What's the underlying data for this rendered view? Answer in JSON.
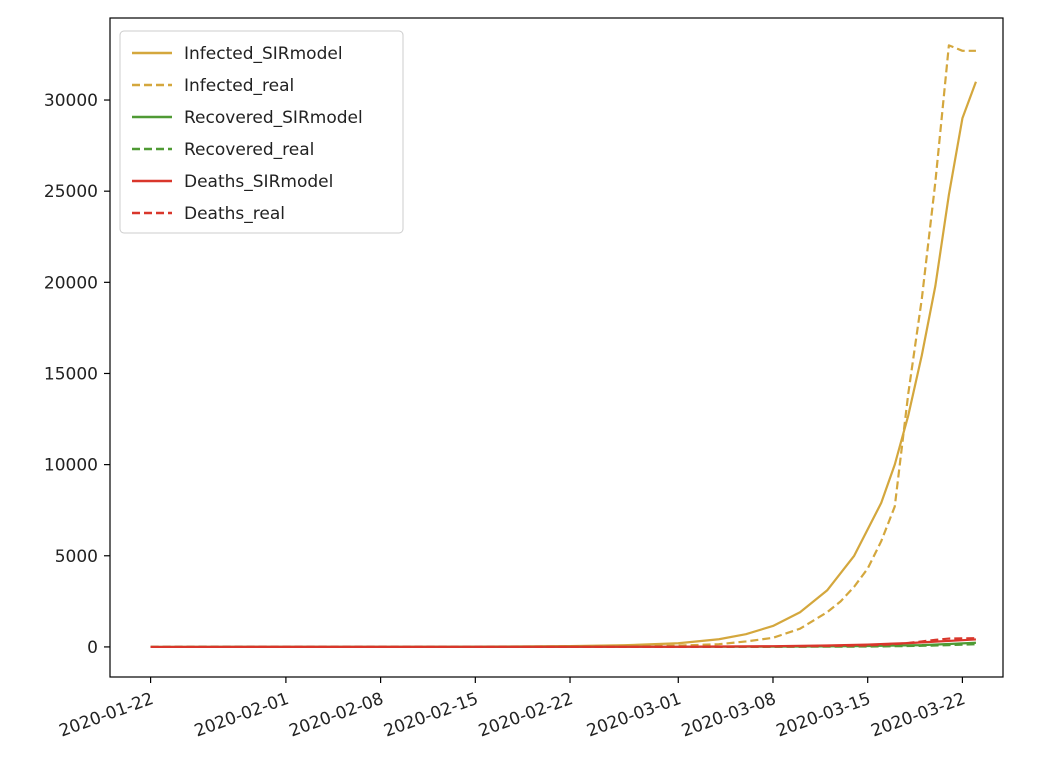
{
  "chart_data": {
    "type": "line",
    "title": "",
    "xlabel": "",
    "ylabel": "",
    "x_start": "2020-01-22",
    "x_end": "2020-03-23",
    "xlim": [
      "2020-01-19",
      "2020-03-25"
    ],
    "ylim": [
      -1650,
      34500
    ],
    "xticks": [
      "2020-01-22",
      "2020-02-01",
      "2020-02-08",
      "2020-02-15",
      "2020-02-22",
      "2020-03-01",
      "2020-03-08",
      "2020-03-15",
      "2020-03-22"
    ],
    "yticks": [
      0,
      5000,
      10000,
      15000,
      20000,
      25000,
      30000
    ],
    "grid": false,
    "legend": "top-left",
    "series": [
      {
        "name": "Infected_SIRmodel",
        "color": "#d4a73d",
        "dash": "solid",
        "points": [
          [
            "2020-01-22",
            0
          ],
          [
            "2020-02-01",
            2
          ],
          [
            "2020-02-08",
            6
          ],
          [
            "2020-02-15",
            15
          ],
          [
            "2020-02-22",
            45
          ],
          [
            "2020-02-26",
            90
          ],
          [
            "2020-03-01",
            200
          ],
          [
            "2020-03-04",
            420
          ],
          [
            "2020-03-06",
            700
          ],
          [
            "2020-03-08",
            1150
          ],
          [
            "2020-03-10",
            1900
          ],
          [
            "2020-03-12",
            3100
          ],
          [
            "2020-03-14",
            5000
          ],
          [
            "2020-03-16",
            7900
          ],
          [
            "2020-03-17",
            10000
          ],
          [
            "2020-03-18",
            12700
          ],
          [
            "2020-03-19",
            16000
          ],
          [
            "2020-03-20",
            19800
          ],
          [
            "2020-03-21",
            24800
          ],
          [
            "2020-03-22",
            29000
          ],
          [
            "2020-03-23",
            31000
          ]
        ]
      },
      {
        "name": "Infected_real",
        "color": "#d4a73d",
        "dash": "dashed",
        "points": [
          [
            "2020-01-22",
            0
          ],
          [
            "2020-02-15",
            10
          ],
          [
            "2020-02-22",
            15
          ],
          [
            "2020-03-01",
            70
          ],
          [
            "2020-03-04",
            150
          ],
          [
            "2020-03-06",
            300
          ],
          [
            "2020-03-08",
            500
          ],
          [
            "2020-03-10",
            1000
          ],
          [
            "2020-03-12",
            1900
          ],
          [
            "2020-03-13",
            2500
          ],
          [
            "2020-03-14",
            3300
          ],
          [
            "2020-03-15",
            4300
          ],
          [
            "2020-03-16",
            5800
          ],
          [
            "2020-03-17",
            7700
          ],
          [
            "2020-03-18",
            13900
          ],
          [
            "2020-03-19",
            19100
          ],
          [
            "2020-03-20",
            25500
          ],
          [
            "2020-03-21",
            33000
          ],
          [
            "2020-03-22",
            32700
          ],
          [
            "2020-03-23",
            32700
          ]
        ]
      },
      {
        "name": "Recovered_SIRmodel",
        "color": "#4f9a34",
        "dash": "solid",
        "points": [
          [
            "2020-01-22",
            0
          ],
          [
            "2020-03-01",
            5
          ],
          [
            "2020-03-10",
            20
          ],
          [
            "2020-03-15",
            50
          ],
          [
            "2020-03-19",
            100
          ],
          [
            "2020-03-21",
            160
          ],
          [
            "2020-03-23",
            230
          ]
        ]
      },
      {
        "name": "Recovered_real",
        "color": "#4f9a34",
        "dash": "dashed",
        "points": [
          [
            "2020-01-22",
            0
          ],
          [
            "2020-03-01",
            5
          ],
          [
            "2020-03-10",
            10
          ],
          [
            "2020-03-15",
            20
          ],
          [
            "2020-03-19",
            60
          ],
          [
            "2020-03-21",
            100
          ],
          [
            "2020-03-23",
            150
          ]
        ]
      },
      {
        "name": "Deaths_SIRmodel",
        "color": "#d9362b",
        "dash": "solid",
        "points": [
          [
            "2020-01-22",
            0
          ],
          [
            "2020-03-01",
            10
          ],
          [
            "2020-03-08",
            40
          ],
          [
            "2020-03-12",
            80
          ],
          [
            "2020-03-15",
            130
          ],
          [
            "2020-03-18",
            210
          ],
          [
            "2020-03-20",
            290
          ],
          [
            "2020-03-22",
            370
          ],
          [
            "2020-03-23",
            410
          ]
        ]
      },
      {
        "name": "Deaths_real",
        "color": "#d9362b",
        "dash": "dashed",
        "points": [
          [
            "2020-01-22",
            0
          ],
          [
            "2020-03-01",
            2
          ],
          [
            "2020-03-08",
            20
          ],
          [
            "2020-03-12",
            50
          ],
          [
            "2020-03-15",
            80
          ],
          [
            "2020-03-17",
            150
          ],
          [
            "2020-03-18",
            220
          ],
          [
            "2020-03-19",
            300
          ],
          [
            "2020-03-20",
            390
          ],
          [
            "2020-03-21",
            460
          ],
          [
            "2020-03-22",
            470
          ],
          [
            "2020-03-23",
            480
          ]
        ]
      }
    ]
  }
}
